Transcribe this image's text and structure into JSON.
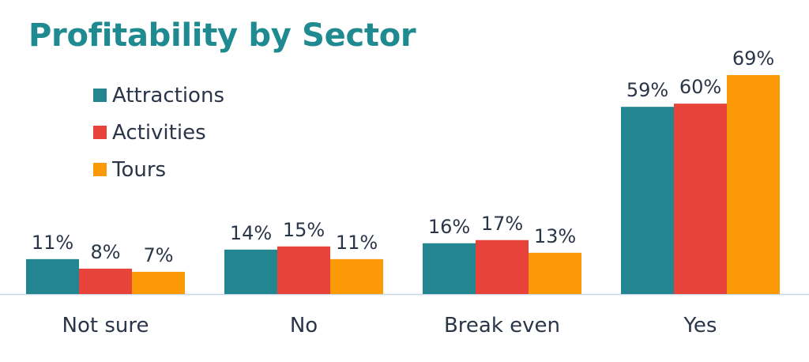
{
  "colors": {
    "title": "#1f8a90",
    "text": "#2a3548",
    "baseline": "#c8d4e0",
    "attractions": "#22858f",
    "activities": "#e8433a",
    "tours": "#fb9a06"
  },
  "chart_data": {
    "type": "bar",
    "title": "Profitability by Sector",
    "xlabel": "",
    "ylabel": "",
    "ylim": [
      0,
      69
    ],
    "grid": false,
    "legend_position": "top-left",
    "value_suffix": "%",
    "categories": [
      "Not sure",
      "No",
      "Break even",
      "Yes"
    ],
    "series": [
      {
        "name": "Attractions",
        "color": "#22858f",
        "values": [
          11,
          14,
          16,
          59
        ]
      },
      {
        "name": "Activities",
        "color": "#e8433a",
        "values": [
          8,
          15,
          17,
          60
        ]
      },
      {
        "name": "Tours",
        "color": "#fb9a06",
        "values": [
          7,
          11,
          13,
          69
        ]
      }
    ]
  }
}
